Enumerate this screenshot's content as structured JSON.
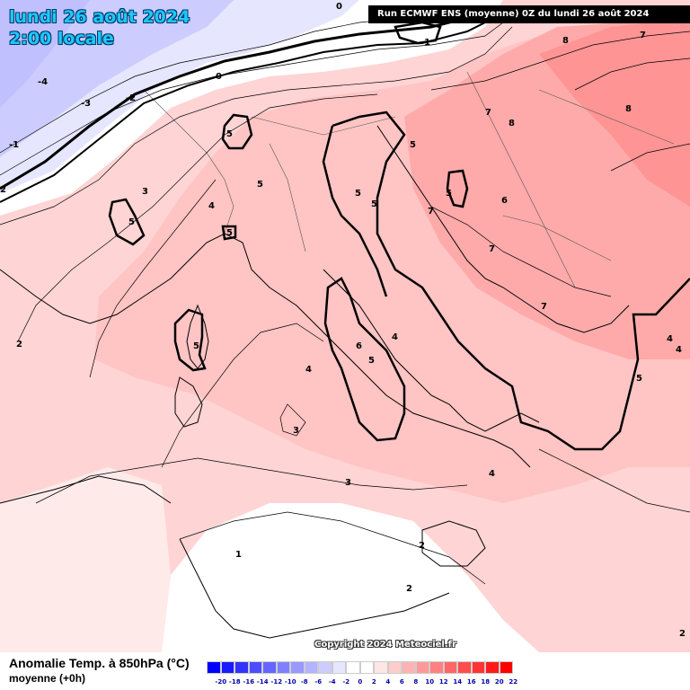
{
  "header": {
    "date": "lundi 26 août 2024",
    "time": "2:00 locale",
    "run": "Run ECMWF ENS (moyenne) 0Z du lundi 26 août 2024"
  },
  "footer": {
    "parameter": "Anomalie Temp. à 850hPa (°C)",
    "subtitle": "moyenne   (+0h)",
    "copyright": "Copyright 2024 Meteociel.fr"
  },
  "legend": {
    "ticks": [
      "-20",
      "-18",
      "-16",
      "-14",
      "-12",
      "-10",
      "-8",
      "-6",
      "-4",
      "-2",
      "0",
      "2",
      "4",
      "6",
      "8",
      "10",
      "12",
      "14",
      "16",
      "18",
      "20",
      "22"
    ],
    "colors": [
      "#0000ff",
      "#1a1aff",
      "#3333ff",
      "#4d4dff",
      "#6666ff",
      "#8080ff",
      "#9999ff",
      "#b3b3ff",
      "#ccccff",
      "#e6e6ff",
      "#ffffff",
      "#ffffff",
      "#ffe6e6",
      "#ffcccc",
      "#ffb3b3",
      "#ff9999",
      "#ff8080",
      "#ff6666",
      "#ff4d4d",
      "#ff3333",
      "#ff1a1a",
      "#ff0000"
    ]
  },
  "map": {
    "contour_labels": [
      {
        "text": "0",
        "lon": 374,
        "lat": 6
      },
      {
        "text": "-1",
        "lon": 468,
        "lat": 46
      },
      {
        "text": "-4",
        "lon": 42,
        "lat": 90
      },
      {
        "text": "-3",
        "lon": 90,
        "lat": 114
      },
      {
        "text": "-2",
        "lon": 140,
        "lat": 108
      },
      {
        "text": "-1",
        "lon": 10,
        "lat": 160
      },
      {
        "text": "0",
        "lon": 240,
        "lat": 84
      },
      {
        "text": "2",
        "lon": 0,
        "lat": 210
      },
      {
        "text": "5",
        "lon": 252,
        "lat": 148
      },
      {
        "text": "5",
        "lon": 286,
        "lat": 204
      },
      {
        "text": "3",
        "lon": 158,
        "lat": 212
      },
      {
        "text": "5",
        "lon": 143,
        "lat": 246
      },
      {
        "text": "4",
        "lon": 232,
        "lat": 228
      },
      {
        "text": "5",
        "lon": 252,
        "lat": 258
      },
      {
        "text": "5",
        "lon": 395,
        "lat": 214
      },
      {
        "text": "5",
        "lon": 413,
        "lat": 226
      },
      {
        "text": "5",
        "lon": 456,
        "lat": 160
      },
      {
        "text": "5",
        "lon": 496,
        "lat": 214
      },
      {
        "text": "8",
        "lon": 626,
        "lat": 44
      },
      {
        "text": "7",
        "lon": 712,
        "lat": 38
      },
      {
        "text": "7",
        "lon": 540,
        "lat": 124
      },
      {
        "text": "8",
        "lon": 566,
        "lat": 136
      },
      {
        "text": "8",
        "lon": 696,
        "lat": 120
      },
      {
        "text": "6",
        "lon": 558,
        "lat": 222
      },
      {
        "text": "7",
        "lon": 476,
        "lat": 234
      },
      {
        "text": "7",
        "lon": 544,
        "lat": 276
      },
      {
        "text": "7",
        "lon": 602,
        "lat": 340
      },
      {
        "text": "2",
        "lon": 18,
        "lat": 382
      },
      {
        "text": "5",
        "lon": 215,
        "lat": 384
      },
      {
        "text": "6",
        "lon": 396,
        "lat": 384
      },
      {
        "text": "4",
        "lon": 436,
        "lat": 374
      },
      {
        "text": "5",
        "lon": 410,
        "lat": 400
      },
      {
        "text": "4",
        "lon": 340,
        "lat": 410
      },
      {
        "text": "4",
        "lon": 742,
        "lat": 376
      },
      {
        "text": "4",
        "lon": 752,
        "lat": 388
      },
      {
        "text": "5",
        "lon": 708,
        "lat": 420
      },
      {
        "text": "3",
        "lon": 326,
        "lat": 478
      },
      {
        "text": "3",
        "lon": 384,
        "lat": 536
      },
      {
        "text": "4",
        "lon": 544,
        "lat": 526
      },
      {
        "text": "2",
        "lon": 466,
        "lat": 606
      },
      {
        "text": "1",
        "lon": 262,
        "lat": 616
      },
      {
        "text": "2",
        "lon": 452,
        "lat": 654
      },
      {
        "text": "2",
        "lon": 756,
        "lat": 704
      }
    ]
  }
}
